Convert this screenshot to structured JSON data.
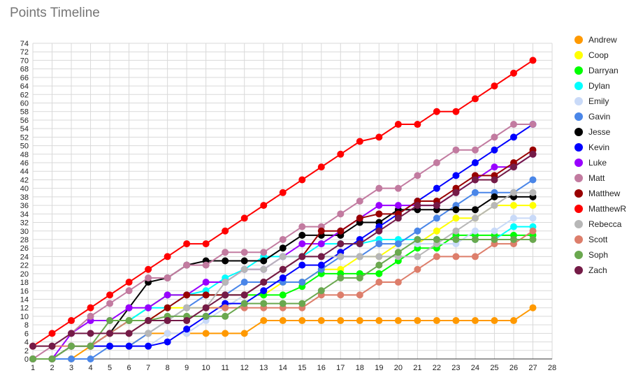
{
  "chart_data": {
    "type": "line",
    "title": "Points Timeline",
    "xlabel": "",
    "ylabel": "",
    "xlim": [
      1,
      28
    ],
    "ylim": [
      0,
      74
    ],
    "x_ticks": [
      1,
      2,
      3,
      4,
      5,
      6,
      7,
      8,
      9,
      10,
      11,
      12,
      13,
      14,
      15,
      16,
      17,
      18,
      19,
      20,
      21,
      22,
      23,
      24,
      25,
      26,
      27,
      28
    ],
    "y_ticks": [
      0,
      2,
      4,
      6,
      8,
      10,
      12,
      14,
      16,
      18,
      20,
      22,
      24,
      26,
      28,
      30,
      32,
      34,
      36,
      38,
      40,
      42,
      44,
      46,
      48,
      50,
      52,
      54,
      56,
      58,
      60,
      62,
      64,
      66,
      68,
      70,
      72,
      74
    ],
    "grid": true,
    "legend_position": "right",
    "x": [
      1,
      2,
      3,
      4,
      5,
      6,
      7,
      8,
      9,
      10,
      11,
      12,
      13,
      14,
      15,
      16,
      17,
      18,
      19,
      20,
      21,
      22,
      23,
      24,
      25,
      26,
      27
    ],
    "series": [
      {
        "name": "Andrew",
        "color": "#ff9900",
        "values": [
          0,
          0,
          0,
          3,
          3,
          3,
          6,
          6,
          6,
          6,
          6,
          6,
          9,
          9,
          9,
          9,
          9,
          9,
          9,
          9,
          9,
          9,
          9,
          9,
          9,
          9,
          12
        ]
      },
      {
        "name": "Coop",
        "color": "#ffff00",
        "values": [
          0,
          0,
          3,
          3,
          6,
          9,
          9,
          12,
          12,
          12,
          12,
          15,
          15,
          18,
          18,
          21,
          21,
          24,
          24,
          27,
          27,
          30,
          33,
          33,
          36,
          36,
          36
        ]
      },
      {
        "name": "Darryan",
        "color": "#00ff00",
        "values": [
          0,
          0,
          3,
          3,
          6,
          9,
          12,
          15,
          15,
          15,
          15,
          15,
          15,
          15,
          17,
          20,
          20,
          20,
          20,
          23,
          26,
          26,
          29,
          29,
          29,
          29,
          29
        ]
      },
      {
        "name": "Dylan",
        "color": "#00ffff",
        "values": [
          0,
          0,
          3,
          3,
          6,
          9,
          12,
          12,
          15,
          16,
          19,
          21,
          24,
          24,
          24,
          27,
          27,
          27,
          28,
          28,
          28,
          28,
          28,
          28,
          28,
          31,
          31
        ]
      },
      {
        "name": "Emily",
        "color": "#c9daf8",
        "values": [
          0,
          0,
          3,
          3,
          3,
          3,
          3,
          6,
          6,
          9,
          12,
          15,
          18,
          21,
          24,
          24,
          24,
          24,
          27,
          27,
          27,
          27,
          27,
          30,
          30,
          33,
          33
        ]
      },
      {
        "name": "Gavin",
        "color": "#4a86e8",
        "values": [
          0,
          0,
          0,
          0,
          3,
          3,
          6,
          9,
          12,
          15,
          15,
          18,
          18,
          18,
          18,
          21,
          24,
          24,
          27,
          27,
          30,
          33,
          36,
          39,
          39,
          39,
          42
        ]
      },
      {
        "name": "Jesse",
        "color": "#000000",
        "values": [
          0,
          0,
          3,
          3,
          6,
          12,
          18,
          19,
          22,
          23,
          23,
          23,
          23,
          26,
          29,
          29,
          29,
          32,
          32,
          35,
          35,
          35,
          35,
          35,
          38,
          38,
          38
        ]
      },
      {
        "name": "Kevin",
        "color": "#0000ff",
        "values": [
          0,
          0,
          3,
          3,
          3,
          3,
          3,
          4,
          7,
          10,
          13,
          13,
          16,
          19,
          22,
          22,
          25,
          28,
          31,
          34,
          37,
          40,
          43,
          46,
          49,
          52,
          55
        ]
      },
      {
        "name": "Luke",
        "color": "#9900ff",
        "values": [
          0,
          0,
          6,
          9,
          9,
          12,
          12,
          15,
          15,
          18,
          18,
          21,
          21,
          24,
          27,
          27,
          30,
          33,
          36,
          36,
          36,
          36,
          39,
          42,
          45,
          45,
          48
        ]
      },
      {
        "name": "Matt",
        "color": "#c27ba0",
        "values": [
          0,
          3,
          6,
          10,
          13,
          16,
          19,
          19,
          22,
          22,
          25,
          25,
          25,
          28,
          31,
          31,
          34,
          37,
          40,
          40,
          43,
          46,
          49,
          49,
          52,
          55,
          55
        ]
      },
      {
        "name": "Matthew",
        "color": "#990000",
        "values": [
          0,
          0,
          3,
          3,
          6,
          6,
          9,
          12,
          15,
          15,
          15,
          15,
          18,
          21,
          24,
          30,
          30,
          33,
          34,
          34,
          37,
          37,
          40,
          43,
          43,
          46,
          49
        ]
      },
      {
        "name": "MatthewR",
        "color": "#ff0000",
        "values": [
          3,
          6,
          9,
          12,
          15,
          18,
          21,
          24,
          27,
          27,
          30,
          33,
          36,
          39,
          42,
          45,
          48,
          51,
          52,
          55,
          55,
          58,
          58,
          61,
          64,
          67,
          70
        ]
      },
      {
        "name": "Rebecca",
        "color": "#b7b7b7",
        "values": [
          0,
          0,
          3,
          3,
          6,
          6,
          6,
          9,
          12,
          12,
          18,
          21,
          21,
          24,
          24,
          24,
          24,
          24,
          24,
          24,
          24,
          27,
          30,
          33,
          36,
          39,
          39
        ]
      },
      {
        "name": "Scott",
        "color": "#dd7e6b",
        "values": [
          3,
          3,
          3,
          3,
          6,
          9,
          9,
          9,
          9,
          12,
          12,
          12,
          12,
          12,
          12,
          15,
          15,
          15,
          18,
          18,
          21,
          24,
          24,
          24,
          27,
          27,
          30
        ]
      },
      {
        "name": "Soph",
        "color": "#6aa84f",
        "values": [
          0,
          0,
          3,
          3,
          9,
          9,
          9,
          10,
          10,
          10,
          10,
          13,
          13,
          13,
          13,
          16,
          19,
          19,
          22,
          25,
          28,
          28,
          28,
          28,
          28,
          28,
          28
        ]
      },
      {
        "name": "Zach",
        "color": "#741b47",
        "values": [
          3,
          3,
          6,
          6,
          6,
          6,
          9,
          9,
          9,
          12,
          15,
          15,
          18,
          21,
          24,
          24,
          27,
          27,
          30,
          33,
          36,
          36,
          39,
          42,
          42,
          45,
          48
        ]
      }
    ]
  }
}
